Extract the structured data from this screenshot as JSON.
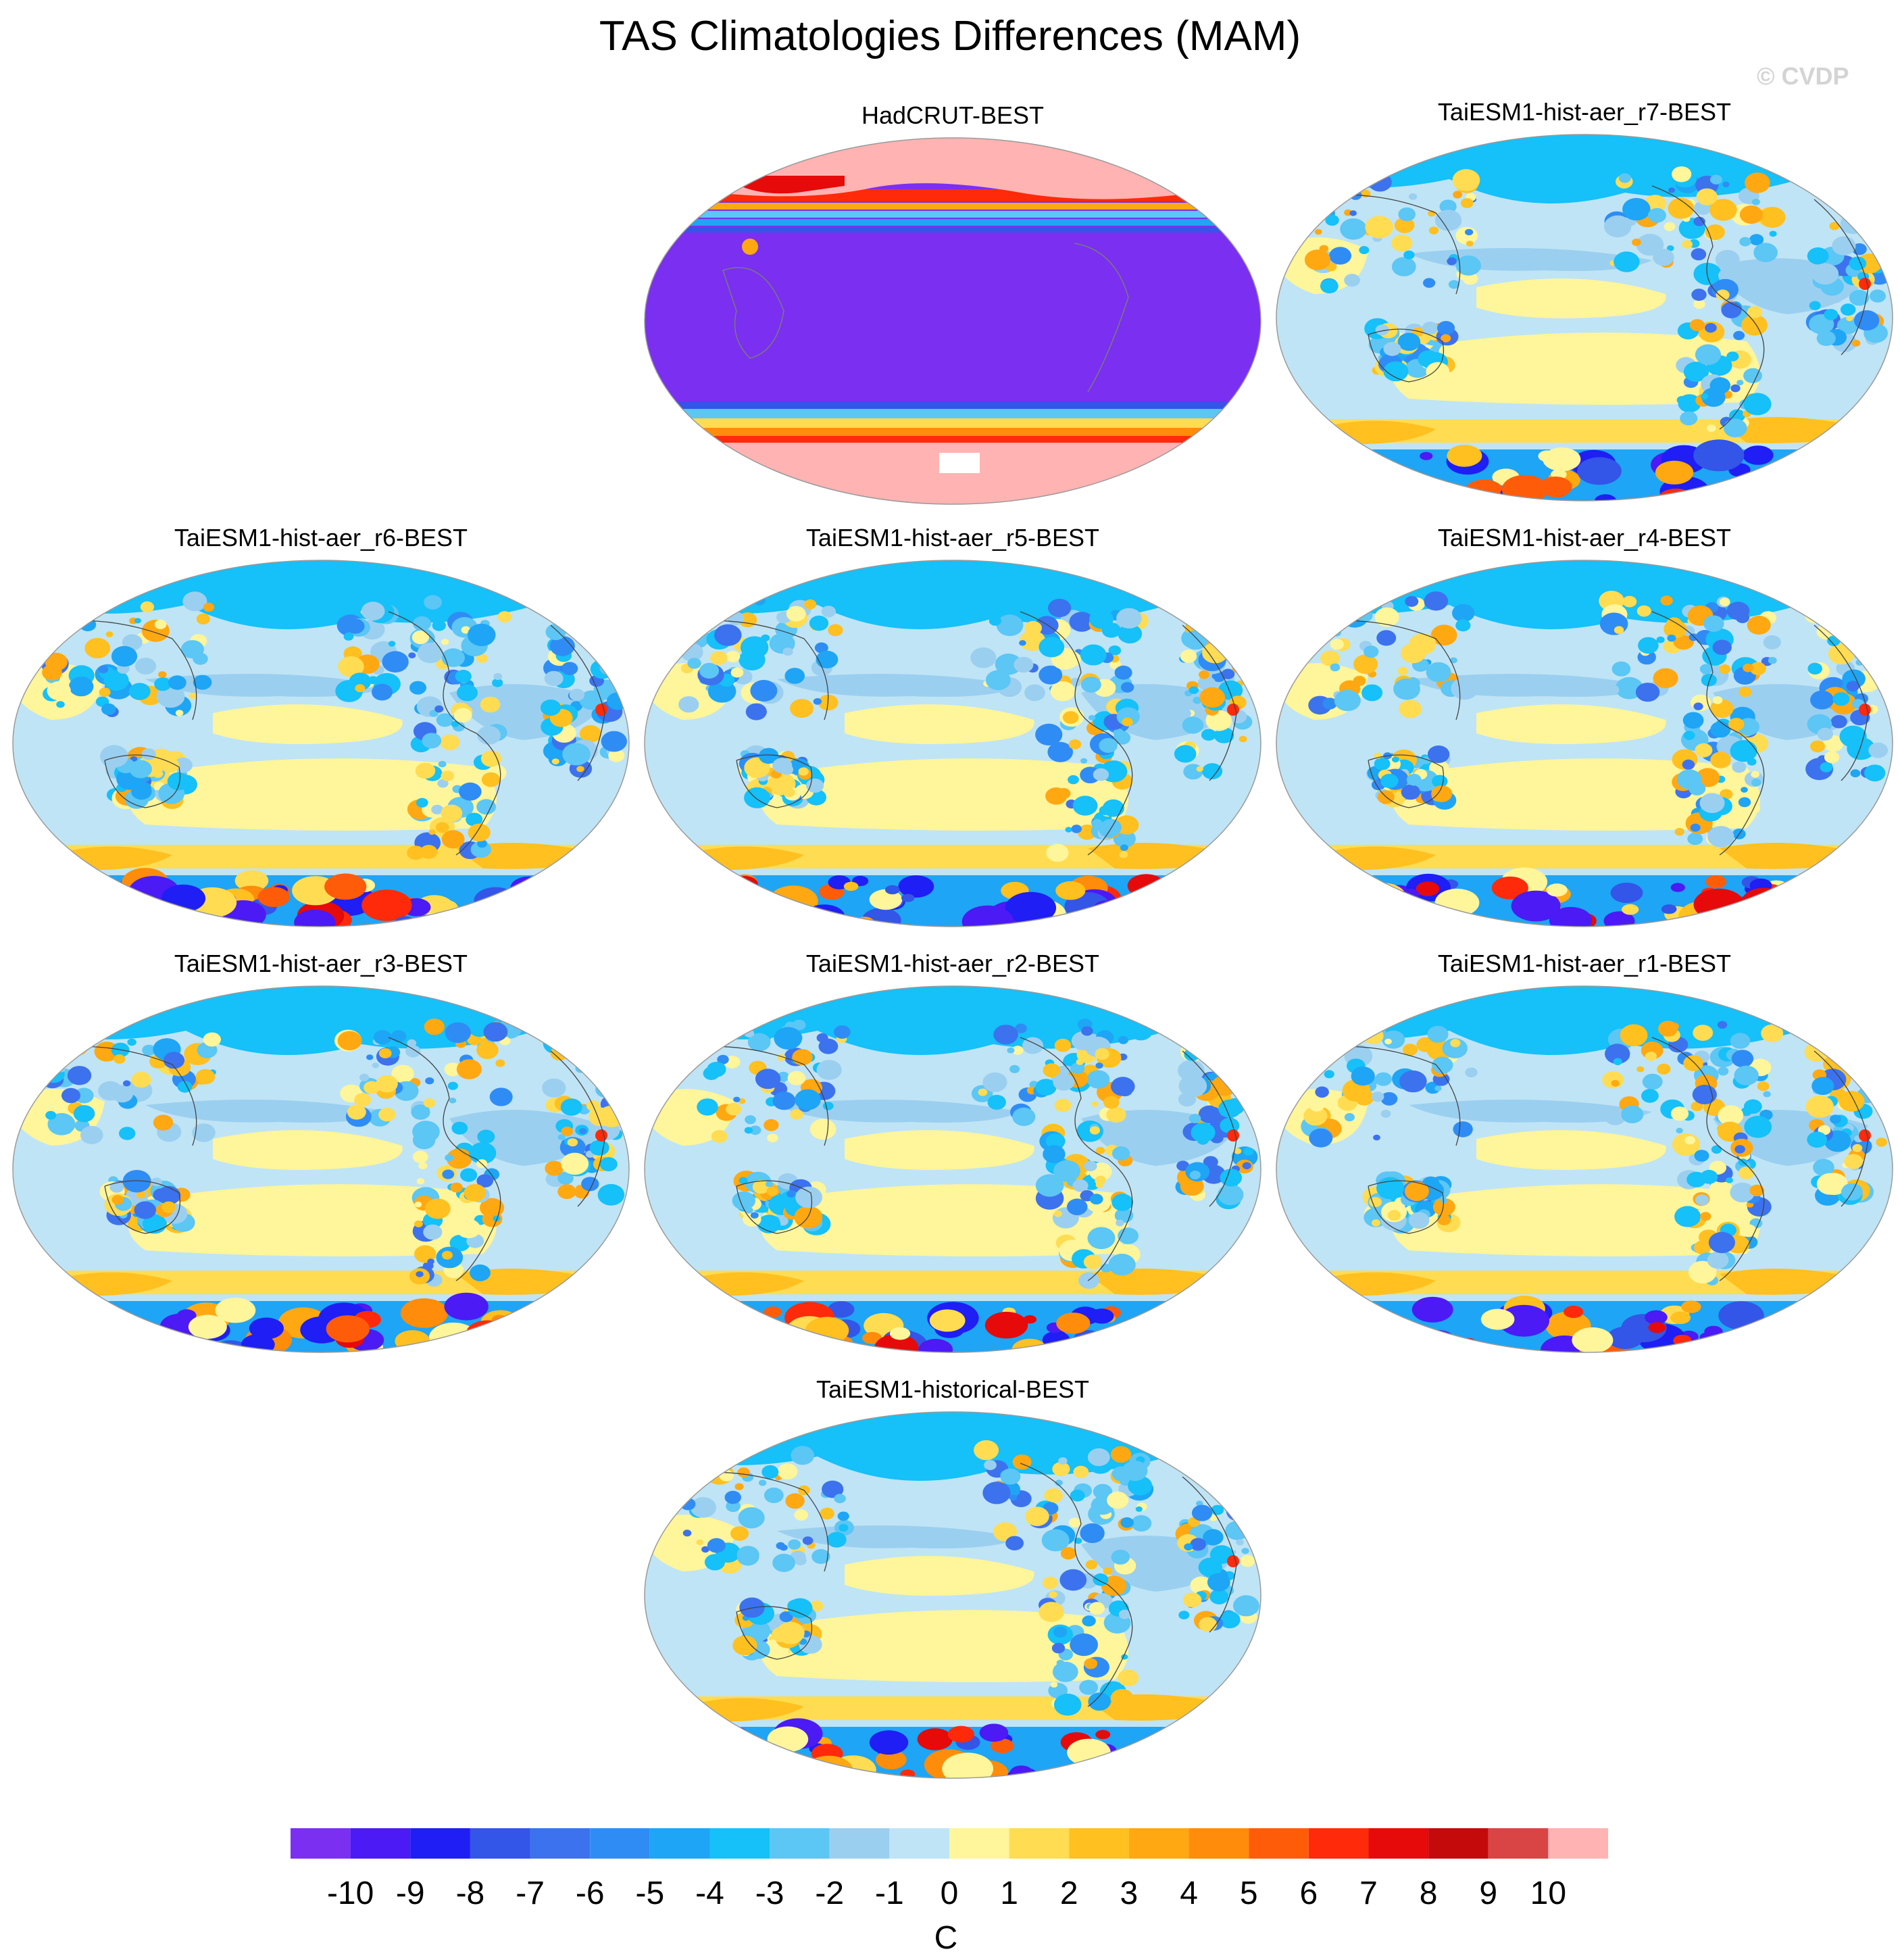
{
  "title": "TAS Climatologies Differences (MAM)",
  "watermark": "© CVDP",
  "chart_data": {
    "type": "heatmap",
    "title": "TAS Climatologies Differences (MAM)",
    "projection": "Robinson (Pacific-centered)",
    "panels": [
      {
        "name": "HadCRUT-BEST",
        "pattern": "obs_mask"
      },
      {
        "name": "TaiESM1-hist-aer_r7-BEST",
        "pattern": "model"
      },
      {
        "name": "TaiESM1-hist-aer_r6-BEST",
        "pattern": "model"
      },
      {
        "name": "TaiESM1-hist-aer_r5-BEST",
        "pattern": "model"
      },
      {
        "name": "TaiESM1-hist-aer_r4-BEST",
        "pattern": "model"
      },
      {
        "name": "TaiESM1-hist-aer_r3-BEST",
        "pattern": "model"
      },
      {
        "name": "TaiESM1-hist-aer_r2-BEST",
        "pattern": "model"
      },
      {
        "name": "TaiESM1-hist-aer_r1-BEST",
        "pattern": "model"
      },
      {
        "name": "TaiESM1-historical-BEST",
        "pattern": "model"
      }
    ],
    "colorbar": {
      "unit": "C",
      "levels": [
        -10,
        -9,
        -8,
        -7,
        -6,
        -5,
        -4,
        -3,
        -2,
        -1,
        0,
        1,
        2,
        3,
        4,
        5,
        6,
        7,
        8,
        9,
        10
      ],
      "colors": [
        "#7b2ff0",
        "#4b1af5",
        "#1e1ef5",
        "#3355e8",
        "#3c72ee",
        "#2f8cf5",
        "#1ea5f5",
        "#16c0f8",
        "#5cc6f5",
        "#9bcff0",
        "#bfe4f5",
        "#fff59a",
        "#ffdc52",
        "#ffc020",
        "#ffa812",
        "#ff8c0a",
        "#ff5c0a",
        "#ff2a0a",
        "#e60a0a",
        "#c40a0a",
        "#d94545",
        "#ffb3b3"
      ]
    }
  }
}
